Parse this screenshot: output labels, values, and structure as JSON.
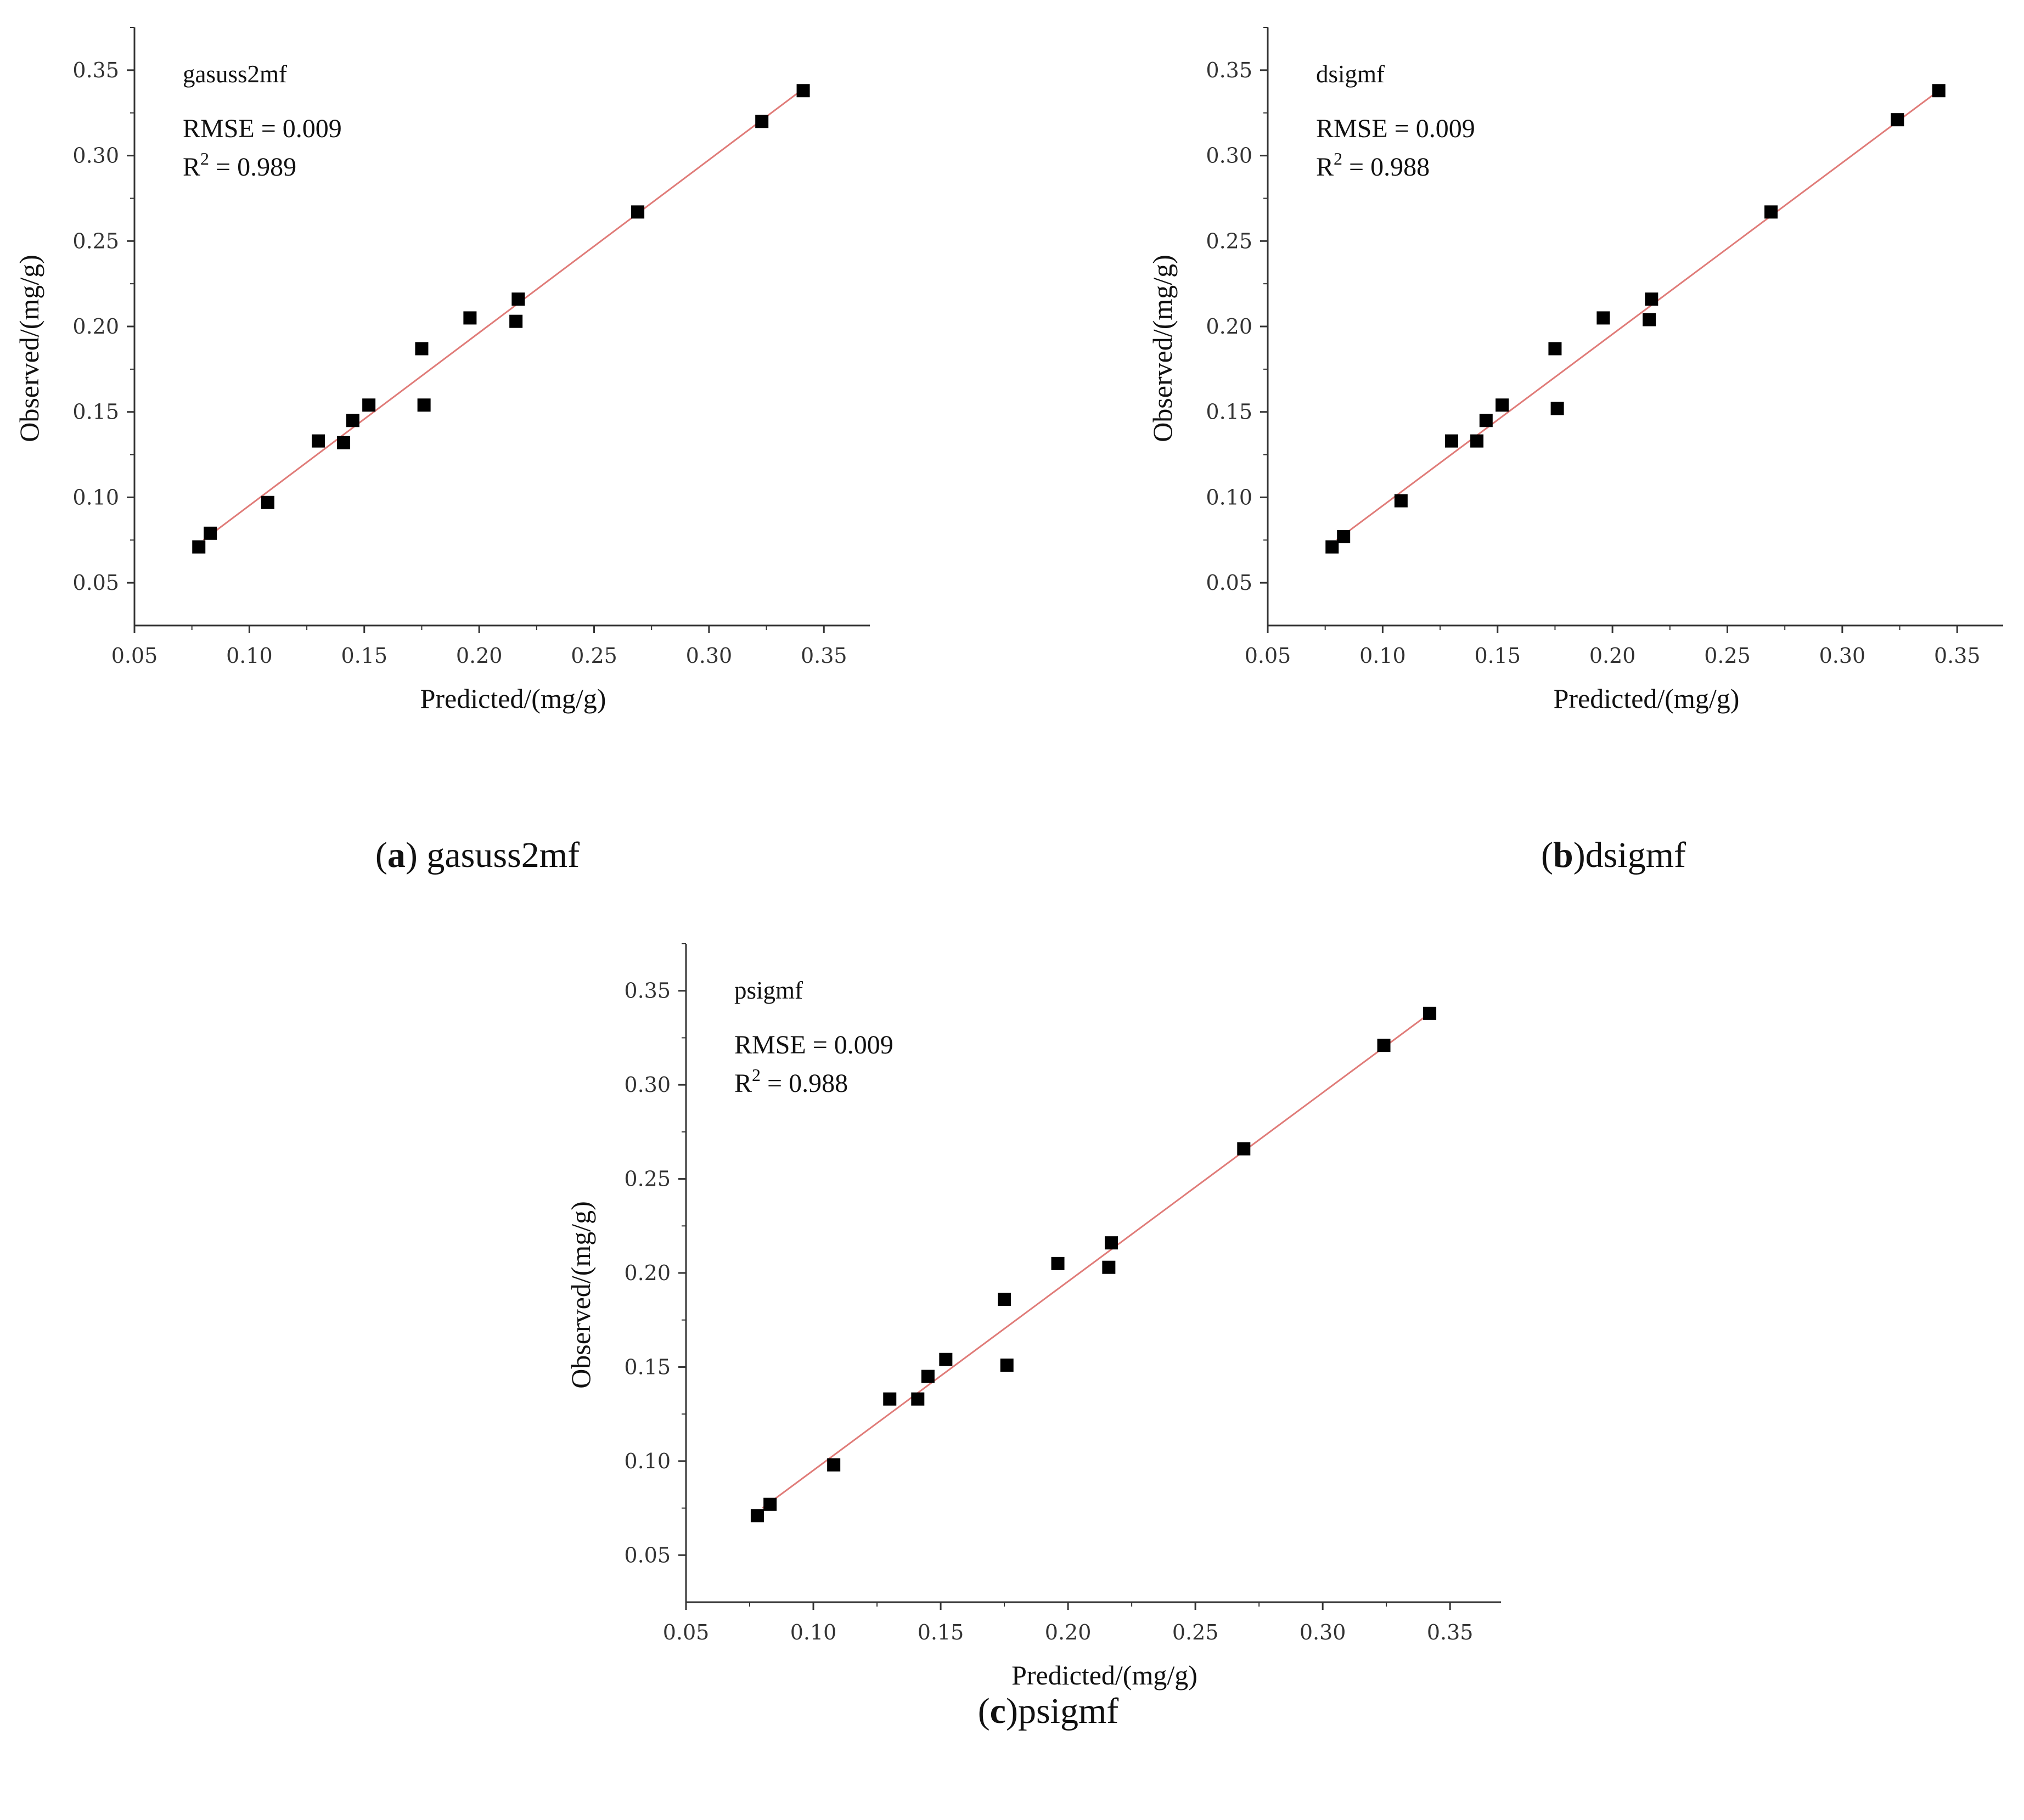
{
  "chart_data": [
    {
      "type": "scatter",
      "panel": "a",
      "name": "gasuss2mf",
      "caption_open": "(",
      "caption_letter": "a",
      "caption_close": ")",
      "caption_text": " gasuss2mf",
      "rmse_label": "RMSE = 0.009",
      "r2_prefix": "R",
      "r2_sup": "2",
      "r2_value": " = 0.989",
      "xlabel": "Predicted/(mg/g)",
      "ylabel": "Observed/(mg/g)",
      "xlim": [
        0.05,
        0.37
      ],
      "ylim": [
        0.025,
        0.375
      ],
      "xticks": [
        "0.05",
        "0.10",
        "0.15",
        "0.20",
        "0.25",
        "0.30",
        "0.35"
      ],
      "yticks": [
        "0.05",
        "0.10",
        "0.15",
        "0.20",
        "0.25",
        "0.30",
        "0.35"
      ],
      "fit_line": {
        "x": [
          0.08,
          0.34
        ],
        "y": [
          0.075,
          0.338
        ]
      },
      "points": [
        {
          "x": 0.078,
          "y": 0.071
        },
        {
          "x": 0.083,
          "y": 0.079
        },
        {
          "x": 0.108,
          "y": 0.097
        },
        {
          "x": 0.13,
          "y": 0.133
        },
        {
          "x": 0.141,
          "y": 0.132
        },
        {
          "x": 0.145,
          "y": 0.145
        },
        {
          "x": 0.152,
          "y": 0.154
        },
        {
          "x": 0.175,
          "y": 0.187
        },
        {
          "x": 0.176,
          "y": 0.154
        },
        {
          "x": 0.196,
          "y": 0.205
        },
        {
          "x": 0.216,
          "y": 0.203
        },
        {
          "x": 0.217,
          "y": 0.216
        },
        {
          "x": 0.269,
          "y": 0.267
        },
        {
          "x": 0.323,
          "y": 0.32
        },
        {
          "x": 0.341,
          "y": 0.338
        }
      ]
    },
    {
      "type": "scatter",
      "panel": "b",
      "name": "dsigmf",
      "caption_open": "(",
      "caption_letter": "b",
      "caption_close": ")",
      "caption_text": "dsigmf",
      "rmse_label": "RMSE = 0.009",
      "r2_prefix": "R",
      "r2_sup": "2",
      "r2_value": " = 0.988",
      "xlabel": "Predicted/(mg/g)",
      "ylabel": "Observed/(mg/g)",
      "xlim": [
        0.05,
        0.37
      ],
      "ylim": [
        0.025,
        0.375
      ],
      "xticks": [
        "0.05",
        "0.10",
        "0.15",
        "0.20",
        "0.25",
        "0.30",
        "0.35"
      ],
      "yticks": [
        "0.05",
        "0.10",
        "0.15",
        "0.20",
        "0.25",
        "0.30",
        "0.35"
      ],
      "fit_line": {
        "x": [
          0.08,
          0.342
        ],
        "y": [
          0.075,
          0.338
        ]
      },
      "points": [
        {
          "x": 0.078,
          "y": 0.071
        },
        {
          "x": 0.083,
          "y": 0.077
        },
        {
          "x": 0.108,
          "y": 0.098
        },
        {
          "x": 0.13,
          "y": 0.133
        },
        {
          "x": 0.141,
          "y": 0.133
        },
        {
          "x": 0.145,
          "y": 0.145
        },
        {
          "x": 0.152,
          "y": 0.154
        },
        {
          "x": 0.175,
          "y": 0.187
        },
        {
          "x": 0.176,
          "y": 0.152
        },
        {
          "x": 0.196,
          "y": 0.205
        },
        {
          "x": 0.216,
          "y": 0.204
        },
        {
          "x": 0.217,
          "y": 0.216
        },
        {
          "x": 0.269,
          "y": 0.267
        },
        {
          "x": 0.324,
          "y": 0.321
        },
        {
          "x": 0.342,
          "y": 0.338
        }
      ]
    },
    {
      "type": "scatter",
      "panel": "c",
      "name": "psigmf",
      "caption_open": "(",
      "caption_letter": "c",
      "caption_close": ")",
      "caption_text": "psigmf",
      "rmse_label": "RMSE = 0.009",
      "r2_prefix": "R",
      "r2_sup": "2",
      "r2_value": " = 0.988",
      "xlabel": "Predicted/(mg/g)",
      "ylabel": "Observed/(mg/g)",
      "xlim": [
        0.05,
        0.37
      ],
      "ylim": [
        0.025,
        0.375
      ],
      "xticks": [
        "0.05",
        "0.10",
        "0.15",
        "0.20",
        "0.25",
        "0.30",
        "0.35"
      ],
      "yticks": [
        "0.05",
        "0.10",
        "0.15",
        "0.20",
        "0.25",
        "0.30",
        "0.35"
      ],
      "fit_line": {
        "x": [
          0.08,
          0.342
        ],
        "y": [
          0.075,
          0.338
        ]
      },
      "points": [
        {
          "x": 0.078,
          "y": 0.071
        },
        {
          "x": 0.083,
          "y": 0.077
        },
        {
          "x": 0.108,
          "y": 0.098
        },
        {
          "x": 0.13,
          "y": 0.133
        },
        {
          "x": 0.141,
          "y": 0.133
        },
        {
          "x": 0.145,
          "y": 0.145
        },
        {
          "x": 0.152,
          "y": 0.154
        },
        {
          "x": 0.175,
          "y": 0.186
        },
        {
          "x": 0.176,
          "y": 0.151
        },
        {
          "x": 0.196,
          "y": 0.205
        },
        {
          "x": 0.216,
          "y": 0.203
        },
        {
          "x": 0.217,
          "y": 0.216
        },
        {
          "x": 0.269,
          "y": 0.266
        },
        {
          "x": 0.324,
          "y": 0.321
        },
        {
          "x": 0.342,
          "y": 0.338
        }
      ]
    }
  ],
  "colors": {
    "marker": "#000000",
    "fit_line": "#e07b78",
    "axis": "#333333"
  }
}
